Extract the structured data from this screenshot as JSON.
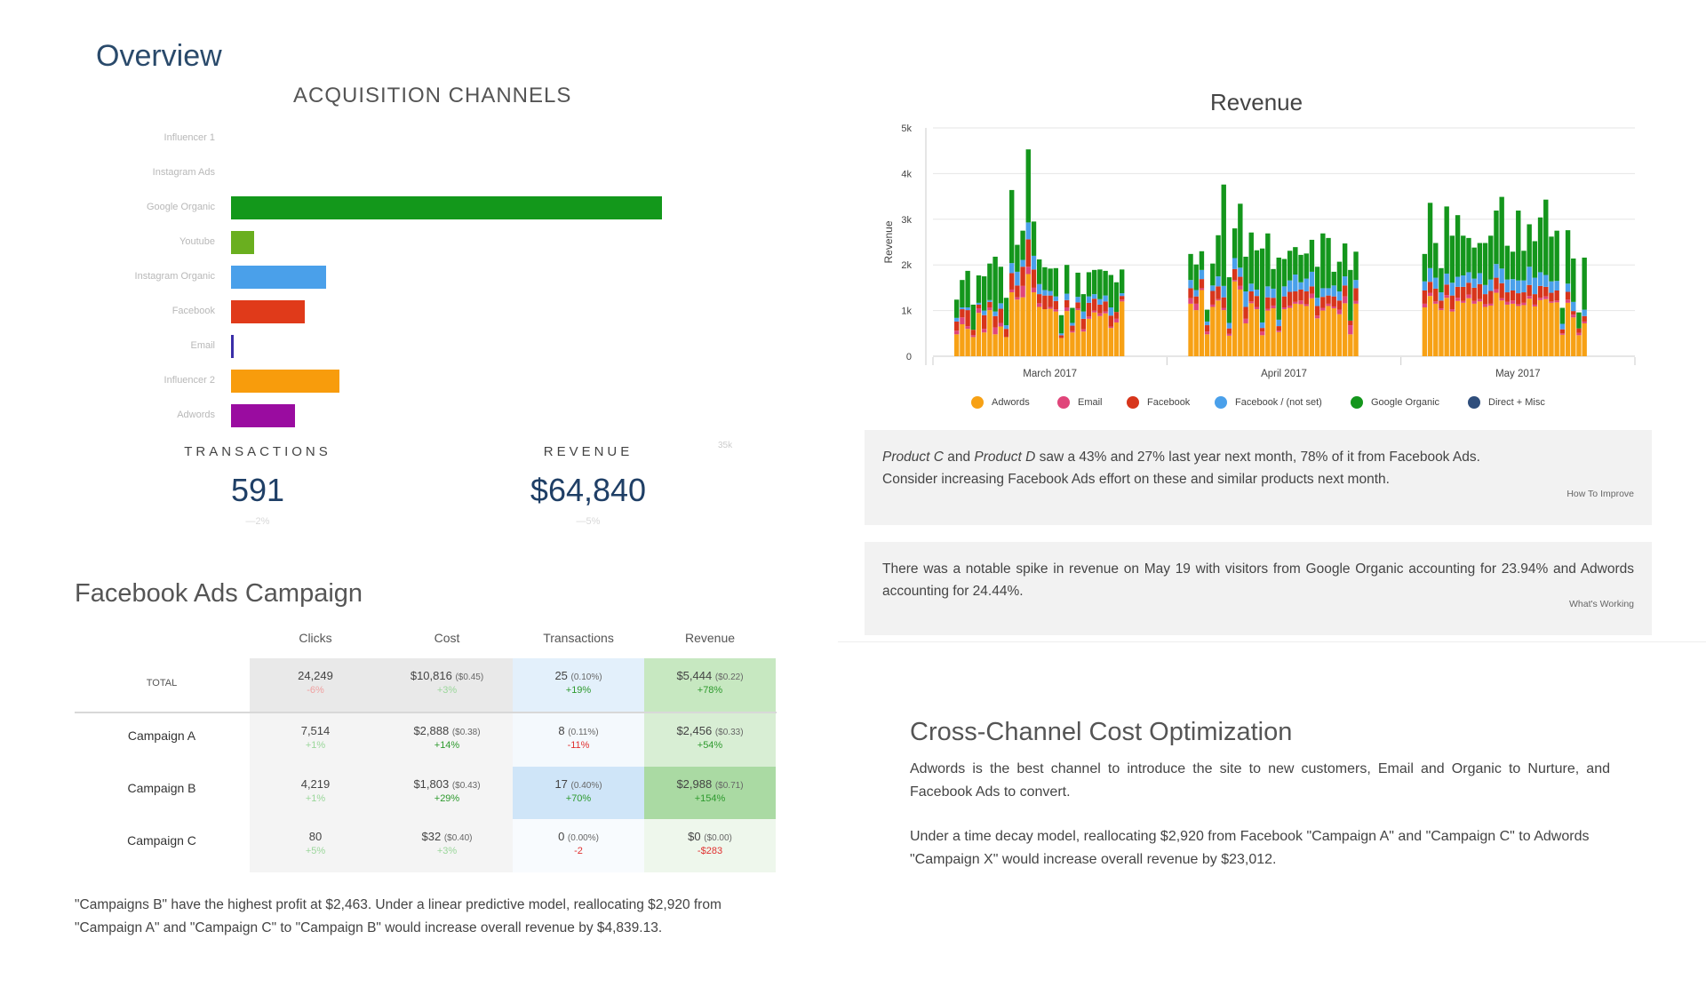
{
  "overview": {
    "title": "Overview",
    "acquisition_title": "ACQUISITION CHANNELS",
    "axis_note": "35k",
    "transactions_label": "TRANSACTIONS",
    "transactions_value": "591",
    "transactions_change": "—2%",
    "revenue_label": "REVENUE",
    "revenue_value": "$64,840",
    "revenue_change": "—5%"
  },
  "acquisition_chart": {
    "type": "bar",
    "orientation": "horizontal",
    "categories": [
      "Influencer 1",
      "Instagram Ads",
      "Google Organic",
      "Youtube",
      "Instagram Organic",
      "Facebook",
      "Email",
      "Influencer 2",
      "Adwords"
    ],
    "values": [
      0,
      0,
      35000,
      1900,
      7700,
      6000,
      200,
      8800,
      5200
    ],
    "colors": [
      "#cccccc",
      "#cccccc",
      "#13981b",
      "#6aaf1f",
      "#4aa0ea",
      "#e03a1a",
      "#3a2ea8",
      "#f89c0c",
      "#9a0ca0"
    ],
    "xlim": [
      0,
      35000
    ]
  },
  "facebook_campaign": {
    "title": "Facebook Ads Campaign",
    "columns": [
      "Clicks",
      "Cost",
      "Transactions",
      "Revenue"
    ],
    "total": {
      "label": "TOTAL",
      "clicks": "24,249",
      "clicks_change": "-6%",
      "cost": "$10,816",
      "cost_sub": "($0.45)",
      "cost_change": "+3%",
      "transactions": "25",
      "transactions_sub": "(0.10%)",
      "transactions_change": "+19%",
      "revenue": "$5,444",
      "revenue_sub": "($0.22)",
      "revenue_change": "+78%"
    },
    "rows": [
      {
        "label": "Campaign A",
        "clicks": "7,514",
        "clicks_change": "+1%",
        "cost": "$2,888",
        "cost_sub": "($0.38)",
        "cost_change": "+14%",
        "transactions": "8",
        "transactions_sub": "(0.11%)",
        "transactions_change": "-11%",
        "revenue": "$2,456",
        "revenue_sub": "($0.33)",
        "revenue_change": "+54%"
      },
      {
        "label": "Campaign B",
        "clicks": "4,219",
        "clicks_change": "+1%",
        "cost": "$1,803",
        "cost_sub": "($0.43)",
        "cost_change": "+29%",
        "transactions": "17",
        "transactions_sub": "(0.40%)",
        "transactions_change": "+70%",
        "revenue": "$2,988",
        "revenue_sub": "($0.71)",
        "revenue_change": "+154%"
      },
      {
        "label": "Campaign C",
        "clicks": "80",
        "clicks_change": "+5%",
        "cost": "$32",
        "cost_sub": "($0.40)",
        "cost_change": "+3%",
        "transactions": "0",
        "transactions_sub": "(0.00%)",
        "transactions_change": "-2",
        "revenue": "$0",
        "revenue_sub": "($0.00)",
        "revenue_change": "-$283"
      }
    ],
    "note": "\"Campaigns B\" have the highest profit at $2,463. Under a linear predictive model, reallocating $2,920 from \"Campaign A\" and \"Campaign C\" to \"Campaign B\" would increase overall revenue by $4,839.13."
  },
  "chart_data": {
    "type": "bar",
    "stacked": true,
    "title": "Revenue",
    "ylabel": "Revenue",
    "ylim": [
      0,
      5000
    ],
    "yticks": [
      "0",
      "1k",
      "2k",
      "3k",
      "4k",
      "5k"
    ],
    "month_labels": [
      "March 2017",
      "April 2017",
      "May 2017"
    ],
    "days_per_month": 31,
    "series": [
      {
        "name": "Adwords",
        "color": "#f7a115",
        "values": [
          480,
          700,
          600,
          420,
          950,
          520,
          1010,
          480,
          650,
          420,
          1400,
          1240,
          1290,
          1800,
          1400,
          1080,
          1030,
          1040,
          980,
          400,
          990,
          520,
          1010,
          540,
          820,
          960,
          880,
          940,
          620,
          740,
          1200,
          1150,
          1010,
          1450,
          480,
          1080,
          1220,
          1010,
          450,
          1640,
          1460,
          720,
          1160,
          1030,
          460,
          1000,
          1050,
          530,
          1030,
          1060,
          1150,
          1140,
          1100,
          1270,
          830,
          1000,
          1100,
          1050,
          920,
          1160,
          480,
          1150,
          1070,
          1320,
          1150,
          1010,
          1280,
          980,
          1210,
          1170,
          1270,
          1150,
          1200,
          1080,
          1110,
          1390,
          1220,
          1130,
          1150,
          1100,
          1120,
          1260,
          1090,
          1230,
          1250,
          1170,
          1180,
          470,
          1170,
          850,
          460,
          720
        ]
      },
      {
        "name": "Email",
        "color": "#e0457a",
        "values": [
          80,
          150,
          60,
          40,
          100,
          80,
          60,
          150,
          80,
          0,
          60,
          50,
          250,
          160,
          100,
          80,
          0,
          40,
          50,
          0,
          80,
          30,
          40,
          50,
          50,
          40,
          60,
          40,
          30,
          80,
          40,
          120,
          140,
          40,
          60,
          50,
          30,
          50,
          40,
          30,
          80,
          100,
          40,
          50,
          80,
          40,
          60,
          30,
          40,
          50,
          40,
          80,
          40,
          100,
          60,
          60,
          50,
          40,
          100,
          150,
          200,
          60,
          80,
          70,
          50,
          40,
          60,
          50,
          70,
          40,
          80,
          60,
          50,
          60,
          40,
          80,
          50,
          60,
          70,
          40,
          50,
          60,
          40,
          50,
          60,
          30,
          40,
          30,
          70,
          60,
          50,
          40
        ]
      },
      {
        "name": "Facebook",
        "color": "#d7351b",
        "values": [
          200,
          180,
          350,
          120,
          80,
          300,
          120,
          250,
          310,
          180,
          360,
          260,
          420,
          600,
          400,
          200,
          300,
          250,
          180,
          60,
          160,
          120,
          130,
          230,
          300,
          260,
          190,
          220,
          240,
          150,
          80,
          220,
          160,
          200,
          140,
          300,
          280,
          230,
          120,
          240,
          200,
          260,
          220,
          240,
          80,
          250,
          170,
          100,
          240,
          300,
          230,
          240,
          280,
          160,
          210,
          240,
          180,
          220,
          200,
          240,
          100,
          280,
          290,
          240,
          280,
          170,
          230,
          300,
          240,
          310,
          260,
          290,
          330,
          220,
          280,
          250,
          330,
          210,
          220,
          240,
          230,
          240,
          230,
          260,
          210,
          190,
          220,
          90,
          170,
          80,
          100,
          120
        ]
      },
      {
        "name": "Facebook / (not set)",
        "color": "#4aa0ea",
        "values": [
          80,
          40,
          60,
          0,
          40,
          100,
          40,
          100,
          120,
          80,
          220,
          300,
          150,
          370,
          300,
          220,
          120,
          100,
          100,
          40,
          140,
          60,
          120,
          160,
          140,
          100,
          120,
          130,
          180,
          0,
          60,
          180,
          140,
          200,
          80,
          120,
          220,
          250,
          120,
          240,
          200,
          340,
          170,
          140,
          120,
          240,
          200,
          140,
          220,
          250,
          370,
          160,
          280,
          320,
          180,
          190,
          160,
          240,
          200,
          200,
          0,
          180,
          200,
          300,
          240,
          180,
          240,
          280,
          220,
          250,
          230,
          200,
          240,
          200,
          250,
          300,
          320,
          280,
          250,
          280,
          260,
          400,
          360,
          300,
          260,
          250,
          210,
          120,
          180,
          200,
          0,
          140
        ]
      },
      {
        "name": "Google Organic",
        "color": "#14961c",
        "values": [
          400,
          600,
          800,
          550,
          600,
          750,
          800,
          1200,
          800,
          600,
          1600,
          590,
          640,
          1600,
          750,
          540,
          500,
          490,
          620,
          400,
          630,
          330,
          530,
          380,
          530,
          530,
          650,
          540,
          710,
          650,
          520,
          570,
          560,
          410,
          260,
          480,
          900,
          2220,
          1000,
          650,
          1400,
          760,
          1120,
          860,
          1620,
          1160,
          430,
          1360,
          600,
          650,
          600,
          600,
          550,
          700,
          680,
          1200,
          1100,
          300,
          650,
          720,
          1110,
          620,
          600,
          1430,
          760,
          530,
          1470,
          1030,
          1350,
          870,
          750,
          680,
          660,
          920,
          960,
          1170,
          1570,
          740,
          600,
          1530,
          650,
          930,
          800,
          1200,
          1650,
          980,
          1100,
          350,
          1170,
          950,
          350,
          1140
        ]
      },
      {
        "name": "Direct + Misc",
        "color": "#2f4e7c",
        "values": [
          0,
          0,
          0,
          0,
          0,
          0,
          0,
          0,
          0,
          0,
          0,
          0,
          0,
          0,
          0,
          0,
          0,
          0,
          0,
          0,
          0,
          0,
          0,
          0,
          0,
          0,
          0,
          0,
          0,
          0,
          0,
          0,
          0,
          0,
          0,
          0,
          0,
          0,
          0,
          0,
          0,
          0,
          0,
          0,
          0,
          0,
          0,
          0,
          0,
          0,
          0,
          0,
          0,
          0,
          0,
          0,
          0,
          0,
          0,
          0,
          0,
          0,
          0,
          0,
          0,
          0,
          0,
          0,
          0,
          0,
          0,
          0,
          0,
          0,
          0,
          0,
          0,
          0,
          0,
          0,
          0,
          0,
          0,
          0,
          0,
          0,
          0,
          0,
          0,
          0,
          0,
          0
        ]
      }
    ]
  },
  "insights": {
    "one_product_c": "Product C",
    "one_and": " and ",
    "one_product_d": "Product D",
    "one_rest": " saw a 43% and 27% last year next month, 78% of it from Facebook Ads.",
    "one_line2": "Consider increasing Facebook Ads effort on these and similar products next month.",
    "one_link": "How To Improve",
    "two_text": "There was a notable spike in revenue on May 19 with visitors from Google Organic accounting for 23.94% and Adwords accounting for 24.44%.",
    "two_link": "What's Working"
  },
  "cross_channel": {
    "title": "Cross-Channel Cost Optimization",
    "p1": "Adwords is the best channel to introduce the site to new customers, Email and Organic to Nurture, and Facebook Ads to convert.",
    "p2": "Under a time decay model, reallocating $2,920 from Facebook \"Campaign A\" and \"Campaign C\" to Adwords \"Campaign X\" would increase overall revenue by $23,012."
  }
}
